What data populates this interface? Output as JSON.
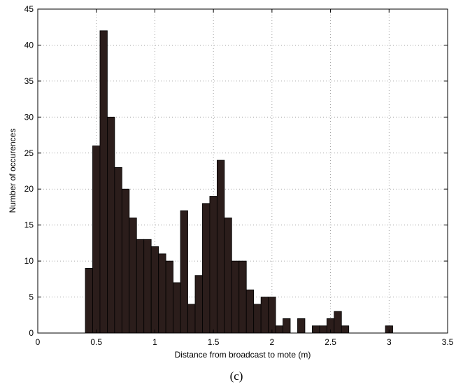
{
  "chart_data": {
    "type": "bar",
    "subtype": "histogram",
    "xlabel": "Distance from broadcast to mote (m)",
    "ylabel": "Number of occurences",
    "caption": "(c)",
    "xlim": [
      0,
      3.5
    ],
    "ylim": [
      0,
      45
    ],
    "xticks": [
      "0",
      "0.5",
      "1",
      "1.5",
      "2",
      "2.5",
      "3",
      "3.5"
    ],
    "yticks": [
      "0",
      "5",
      "10",
      "15",
      "20",
      "25",
      "30",
      "35",
      "40",
      "45"
    ],
    "grid": true,
    "bar_color": "#2b1d1b",
    "bin_width": 0.0625,
    "bin_centers": [
      0.4375,
      0.5,
      0.5625,
      0.625,
      0.6875,
      0.75,
      0.8125,
      0.875,
      0.9375,
      1.0,
      1.0625,
      1.125,
      1.1875,
      1.25,
      1.3125,
      1.375,
      1.4375,
      1.5,
      1.5625,
      1.625,
      1.6875,
      1.75,
      1.8125,
      1.875,
      1.9375,
      2.0,
      2.0625,
      2.125,
      2.1875,
      2.25,
      2.3125,
      2.375,
      2.4375,
      2.5,
      2.5625,
      2.625,
      2.6875,
      2.75,
      2.8125,
      2.875,
      2.9375,
      3.0
    ],
    "values": [
      9,
      26,
      42,
      30,
      23,
      20,
      16,
      13,
      13,
      12,
      11,
      10,
      7,
      17,
      4,
      8,
      18,
      19,
      24,
      16,
      10,
      10,
      6,
      4,
      5,
      5,
      1,
      2,
      0,
      2,
      0,
      1,
      1,
      2,
      3,
      1,
      0,
      0,
      0,
      0,
      0,
      1
    ]
  }
}
